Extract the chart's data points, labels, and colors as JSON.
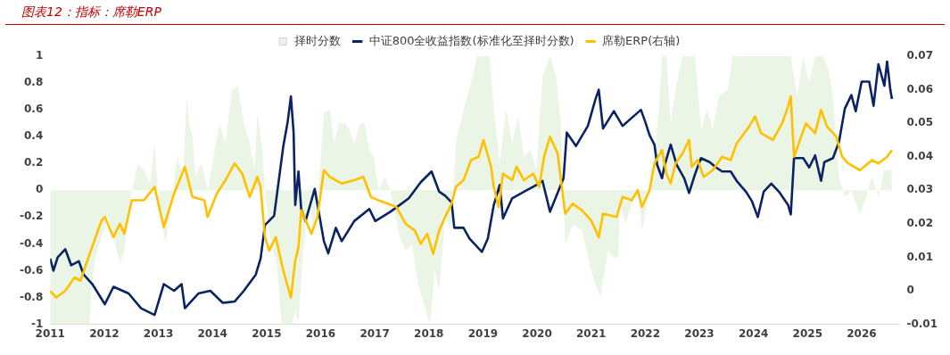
{
  "chart_data": {
    "type": "line",
    "title": "图表12：指标：席勒ERP",
    "legend": "top",
    "grid": false,
    "xlim": [
      2011,
      2026.7
    ],
    "xticks": [
      2011,
      2012,
      2013,
      2014,
      2015,
      2016,
      2017,
      2018,
      2019,
      2020,
      2021,
      2022,
      2023,
      2024,
      2025,
      2026
    ],
    "ylim": [
      -1,
      1
    ],
    "yticks": [
      -1,
      -0.8,
      -0.6,
      -0.4,
      -0.2,
      0,
      0.2,
      0.4,
      0.6,
      0.8,
      1
    ],
    "y2lim": [
      -0.01,
      0.07
    ],
    "y2ticks": [
      -0.01,
      0,
      0.01,
      0.02,
      0.03,
      0.04,
      0.05,
      0.06,
      0.07
    ],
    "series": [
      {
        "name": "择时分数",
        "type": "area",
        "color": "#ebf5e5",
        "x": [
          2011.0,
          2011.73,
          2011.76,
          2011.84,
          2011.95,
          2012.06,
          2012.17,
          2012.29,
          2012.37,
          2012.51,
          2012.62,
          2012.73,
          2012.85,
          2012.93,
          2013.01,
          2013.13,
          2013.24,
          2013.35,
          2013.46,
          2013.52,
          2013.57,
          2013.63,
          2013.68,
          2013.8,
          2013.91,
          2014.02,
          2014.13,
          2014.24,
          2014.36,
          2014.47,
          2014.58,
          2014.69,
          2014.78,
          2014.83,
          2014.92,
          2014.97,
          2015.08,
          2015.19,
          2015.28,
          2015.47,
          2015.53,
          2015.59,
          2015.67,
          2015.78,
          2015.87,
          2015.94,
          2016.06,
          2016.17,
          2016.25,
          2016.34,
          2016.45,
          2016.53,
          2016.62,
          2016.73,
          2016.81,
          2016.9,
          2016.98,
          2017.07,
          2017.18,
          2017.29,
          2017.46,
          2017.57,
          2017.69,
          2017.8,
          2017.91,
          2018.02,
          2018.11,
          2018.19,
          2018.3,
          2018.42,
          2018.5,
          2018.58,
          2018.81,
          2018.89,
          2019.12,
          2019.2,
          2019.31,
          2019.43,
          2019.54,
          2019.65,
          2019.76,
          2019.88,
          2019.99,
          2020.1,
          2020.24,
          2020.35,
          2020.44,
          2020.52,
          2020.66,
          2020.83,
          2021.0,
          2021.08,
          2021.17,
          2021.31,
          2021.42,
          2021.5,
          2021.53,
          2021.64,
          2021.75,
          2021.86,
          2021.94,
          2022.03,
          2022.14,
          2022.25,
          2022.31,
          2022.39,
          2022.47,
          2022.58,
          2022.69,
          2022.92,
          2023.03,
          2023.14,
          2023.25,
          2023.36,
          2023.53,
          2023.61,
          2023.75,
          2024.69,
          2024.81,
          2024.92,
          2025.03,
          2025.14,
          2025.28,
          2025.39,
          2025.47,
          2025.58,
          2025.69,
          2025.81,
          2025.97,
          2026.08,
          2026.19,
          2026.31,
          2026.42,
          2026.56
        ],
        "values": [
          -1,
          -1,
          -0.75,
          -0.5,
          -0.35,
          -0.2,
          -0.35,
          -0.55,
          -0.45,
          0,
          0.2,
          0.15,
          0.05,
          0.35,
          -0.1,
          -0.4,
          -0.1,
          0.25,
          0.1,
          0.7,
          0.5,
          0.4,
          0.1,
          0.2,
          0,
          0.25,
          0.5,
          0.35,
          0.75,
          0.78,
          0.5,
          0.35,
          0.15,
          0.58,
          0.3,
          0,
          -0.4,
          -0.55,
          -1,
          -1,
          -0.9,
          -1,
          -0.5,
          -0.05,
          -0.3,
          -0.1,
          0.58,
          0.6,
          0.35,
          0.5,
          0.5,
          0.45,
          0.35,
          0.5,
          0.5,
          0.3,
          0.25,
          0,
          0.1,
          0,
          -0.35,
          -0.45,
          -0.4,
          -0.7,
          -0.85,
          -1,
          -0.6,
          -0.75,
          -0.2,
          -0.3,
          0.35,
          0.5,
          0.85,
          1,
          1,
          0.6,
          0.2,
          0.6,
          0.35,
          0.55,
          0.25,
          0.3,
          0.15,
          0.85,
          1,
          0.85,
          0.5,
          -0.4,
          -0.25,
          -0.3,
          -0.6,
          -0.7,
          -0.8,
          -0.45,
          -0.5,
          -0.5,
          -0.1,
          -0.25,
          -0.1,
          0.05,
          -0.3,
          -0.1,
          0.1,
          0.6,
          1,
          1,
          0.5,
          0.8,
          1,
          1,
          0.45,
          0.6,
          0.45,
          0.7,
          0.75,
          1,
          1,
          1,
          0.7,
          1,
          0.8,
          1,
          1,
          0.9,
          0.7,
          0.1,
          -0.05,
          0,
          -0.18,
          -0.05,
          0.1,
          -0.05,
          0.15,
          0.15
        ]
      },
      {
        "name": "中证800全收益指数(标准化至择时分数)",
        "color": "#0a2463",
        "x": [
          2011.0,
          2011.06,
          2011.14,
          2011.28,
          2011.39,
          2011.53,
          2011.62,
          2011.78,
          2012.01,
          2012.17,
          2012.45,
          2012.68,
          2012.93,
          2013.1,
          2013.29,
          2013.43,
          2013.49,
          2013.74,
          2013.96,
          2014.19,
          2014.41,
          2014.58,
          2014.8,
          2014.89,
          2014.97,
          2015.14,
          2015.31,
          2015.39,
          2015.45,
          2015.5,
          2015.53,
          2015.59,
          2015.64,
          2015.72,
          2015.89,
          2016.06,
          2016.14,
          2016.28,
          2016.39,
          2016.62,
          2016.9,
          2017.01,
          2017.29,
          2017.46,
          2017.63,
          2017.85,
          2018.05,
          2018.19,
          2018.3,
          2018.42,
          2018.47,
          2018.64,
          2018.75,
          2018.98,
          2019.09,
          2019.2,
          2019.31,
          2019.37,
          2019.54,
          2019.76,
          2019.99,
          2020.1,
          2020.24,
          2020.44,
          2020.49,
          2020.55,
          2020.72,
          2020.94,
          2021.08,
          2021.14,
          2021.22,
          2021.42,
          2021.58,
          2021.75,
          2021.92,
          2022.0,
          2022.08,
          2022.17,
          2022.22,
          2022.31,
          2022.36,
          2022.47,
          2022.58,
          2022.72,
          2022.81,
          2022.92,
          2023.03,
          2023.19,
          2023.31,
          2023.42,
          2023.58,
          2023.69,
          2023.86,
          2023.97,
          2024.08,
          2024.19,
          2024.33,
          2024.47,
          2024.64,
          2024.69,
          2024.75,
          2024.92,
          2025.03,
          2025.14,
          2025.25,
          2025.31,
          2025.47,
          2025.58,
          2025.69,
          2025.81,
          2025.89,
          2026.0,
          2026.14,
          2026.22,
          2026.31,
          2026.42,
          2026.47,
          2026.53,
          2026.56
        ],
        "values": [
          -0.51,
          -0.6,
          -0.5,
          -0.44,
          -0.56,
          -0.53,
          -0.63,
          -0.7,
          -0.85,
          -0.72,
          -0.77,
          -0.88,
          -0.93,
          -0.7,
          -0.75,
          -0.7,
          -0.88,
          -0.77,
          -0.75,
          -0.84,
          -0.83,
          -0.75,
          -0.63,
          -0.51,
          -0.26,
          -0.19,
          0.33,
          0.51,
          0.7,
          0.43,
          -0.11,
          0.14,
          -0.14,
          -0.23,
          0.01,
          -0.38,
          -0.47,
          -0.28,
          -0.38,
          -0.23,
          -0.14,
          -0.23,
          -0.16,
          -0.11,
          -0.06,
          0.06,
          0.14,
          -0.01,
          -0.04,
          -0.09,
          -0.28,
          -0.28,
          -0.36,
          -0.46,
          -0.36,
          -0.11,
          0.04,
          -0.21,
          -0.06,
          -0.01,
          0.04,
          0.07,
          -0.16,
          0.04,
          0.09,
          0.43,
          0.33,
          0.48,
          0.68,
          0.75,
          0.46,
          0.59,
          0.48,
          0.54,
          0.6,
          0.51,
          0.41,
          0.34,
          0.19,
          0.09,
          0.19,
          0.34,
          0.19,
          0.09,
          -0.02,
          0.12,
          0.24,
          0.21,
          0.17,
          0.14,
          0.14,
          0.07,
          -0.01,
          -0.08,
          -0.2,
          -0.01,
          0.05,
          -0.01,
          -0.11,
          -0.18,
          0.24,
          0.24,
          0.17,
          0.26,
          0.07,
          0.21,
          0.24,
          0.36,
          0.61,
          0.71,
          0.59,
          0.81,
          0.81,
          0.63,
          0.94,
          0.78,
          0.96,
          0.75,
          0.68
        ]
      },
      {
        "name": "席勒ERP(右轴)",
        "axis": "y2",
        "color": "#ffc000",
        "x": [
          2011.0,
          2011.11,
          2011.28,
          2011.45,
          2011.56,
          2011.73,
          2011.84,
          2011.95,
          2012.01,
          2012.17,
          2012.29,
          2012.37,
          2012.51,
          2012.73,
          2012.93,
          2013.1,
          2013.29,
          2013.49,
          2013.63,
          2013.85,
          2013.91,
          2014.08,
          2014.24,
          2014.41,
          2014.55,
          2014.69,
          2014.83,
          2014.89,
          2014.97,
          2015.05,
          2015.17,
          2015.31,
          2015.45,
          2015.53,
          2015.59,
          2015.64,
          2015.75,
          2015.83,
          2015.94,
          2016.06,
          2016.17,
          2016.39,
          2016.62,
          2016.79,
          2016.93,
          2017.07,
          2017.24,
          2017.4,
          2017.57,
          2017.74,
          2017.85,
          2017.97,
          2018.08,
          2018.19,
          2018.3,
          2018.42,
          2018.5,
          2018.64,
          2018.78,
          2018.92,
          2019.01,
          2019.15,
          2019.2,
          2019.29,
          2019.37,
          2019.54,
          2019.62,
          2019.76,
          2019.93,
          2020.04,
          2020.13,
          2020.24,
          2020.38,
          2020.52,
          2020.66,
          2020.83,
          2021.0,
          2021.14,
          2021.22,
          2021.47,
          2021.58,
          2021.75,
          2021.86,
          2021.94,
          2022.08,
          2022.17,
          2022.31,
          2022.39,
          2022.47,
          2022.56,
          2022.69,
          2022.81,
          2022.86,
          2022.97,
          2023.08,
          2023.25,
          2023.42,
          2023.58,
          2023.69,
          2023.92,
          2024.03,
          2024.14,
          2024.36,
          2024.53,
          2024.64,
          2024.69,
          2024.75,
          2024.86,
          2024.97,
          2025.14,
          2025.25,
          2025.36,
          2025.53,
          2025.64,
          2025.75,
          2025.97,
          2026.19,
          2026.31,
          2026.47,
          2026.56
        ],
        "values": [
          0.0,
          -0.002,
          0.0,
          0.004,
          0.003,
          0.011,
          0.016,
          0.021,
          0.022,
          0.016,
          0.02,
          0.017,
          0.027,
          0.027,
          0.031,
          0.019,
          0.029,
          0.037,
          0.028,
          0.027,
          0.022,
          0.029,
          0.033,
          0.038,
          0.035,
          0.028,
          0.034,
          0.031,
          0.016,
          0.012,
          0.016,
          0.006,
          -0.002,
          0.009,
          0.013,
          0.024,
          0.02,
          0.017,
          0.022,
          0.036,
          0.034,
          0.032,
          0.033,
          0.034,
          0.028,
          0.027,
          0.026,
          0.025,
          0.02,
          0.018,
          0.014,
          0.017,
          0.011,
          0.018,
          0.022,
          0.026,
          0.031,
          0.033,
          0.039,
          0.04,
          0.045,
          0.037,
          0.031,
          0.025,
          0.035,
          0.033,
          0.037,
          0.033,
          0.035,
          0.031,
          0.04,
          0.046,
          0.041,
          0.023,
          0.026,
          0.024,
          0.021,
          0.016,
          0.023,
          0.022,
          0.028,
          0.027,
          0.03,
          0.025,
          0.03,
          0.038,
          0.042,
          0.035,
          0.032,
          0.038,
          0.041,
          0.045,
          0.037,
          0.039,
          0.034,
          0.036,
          0.04,
          0.039,
          0.044,
          0.049,
          0.052,
          0.047,
          0.045,
          0.05,
          0.055,
          0.058,
          0.04,
          0.045,
          0.05,
          0.047,
          0.054,
          0.049,
          0.046,
          0.04,
          0.038,
          0.036,
          0.039,
          0.038,
          0.04,
          0.042
        ]
      }
    ]
  }
}
